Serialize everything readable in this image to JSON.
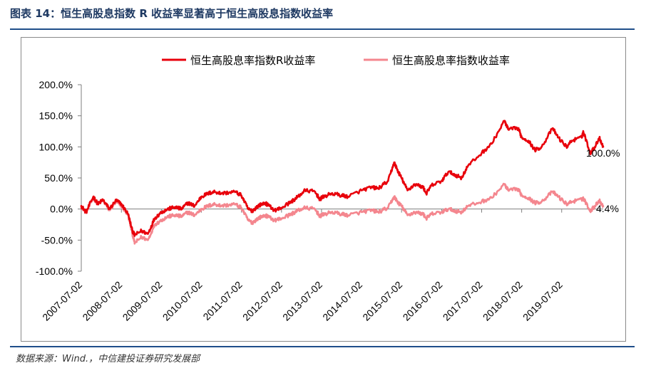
{
  "figure": {
    "title": "图表 14：恒生高股息指数 R 收益率显著高于恒生高股息指数收益率",
    "source": "数据来源：Wind.，中信建投证券研究发展部"
  },
  "chart_data": {
    "type": "line",
    "ylim": [
      -100,
      200
    ],
    "yticks": [
      "200.0%",
      "150.0%",
      "100.0%",
      "50.0%",
      "0.0%",
      "-50.0%",
      "-100.0%"
    ],
    "ytick_values": [
      200,
      150,
      100,
      50,
      0,
      -50,
      -100
    ],
    "xlim": [
      "2007-07-02",
      "2020-07-15"
    ],
    "xticks": [
      "2007-07-02",
      "2008-07-02",
      "2009-07-02",
      "2010-07-02",
      "2011-07-02",
      "2012-07-02",
      "2013-07-02",
      "2014-07-02",
      "2015-07-02",
      "2016-07-02",
      "2017-07-02",
      "2018-07-02",
      "2019-07-02"
    ],
    "legend_position": "top",
    "grid": false,
    "series": [
      {
        "name": "恒生高股息率指数R收益率",
        "color": "#e8000b",
        "end_label": "100.0%",
        "points": [
          [
            "2007-07-02",
            5
          ],
          [
            "2007-08-15",
            -5
          ],
          [
            "2007-10-20",
            20
          ],
          [
            "2007-12-01",
            8
          ],
          [
            "2008-01-15",
            15
          ],
          [
            "2008-03-15",
            0
          ],
          [
            "2008-05-15",
            14
          ],
          [
            "2008-07-02",
            8
          ],
          [
            "2008-09-01",
            -8
          ],
          [
            "2008-10-10",
            -35
          ],
          [
            "2008-11-01",
            -42
          ],
          [
            "2009-01-01",
            -35
          ],
          [
            "2009-03-01",
            -40
          ],
          [
            "2009-05-01",
            -15
          ],
          [
            "2009-07-02",
            -5
          ],
          [
            "2009-09-01",
            0
          ],
          [
            "2009-11-01",
            3
          ],
          [
            "2010-01-01",
            0
          ],
          [
            "2010-03-01",
            10
          ],
          [
            "2010-05-01",
            5
          ],
          [
            "2010-07-02",
            20
          ],
          [
            "2010-09-01",
            25
          ],
          [
            "2010-11-01",
            28
          ],
          [
            "2011-01-01",
            25
          ],
          [
            "2011-05-01",
            28
          ],
          [
            "2011-07-02",
            22
          ],
          [
            "2011-09-01",
            0
          ],
          [
            "2011-10-10",
            -3
          ],
          [
            "2011-12-01",
            5
          ],
          [
            "2012-02-01",
            10
          ],
          [
            "2012-05-01",
            -2
          ],
          [
            "2012-07-02",
            2
          ],
          [
            "2012-10-01",
            12
          ],
          [
            "2012-12-01",
            20
          ],
          [
            "2013-02-01",
            30
          ],
          [
            "2013-05-01",
            28
          ],
          [
            "2013-06-20",
            15
          ],
          [
            "2013-07-02",
            18
          ],
          [
            "2013-10-01",
            25
          ],
          [
            "2014-01-01",
            22
          ],
          [
            "2014-03-01",
            20
          ],
          [
            "2014-07-02",
            30
          ],
          [
            "2014-10-01",
            35
          ],
          [
            "2014-12-01",
            33
          ],
          [
            "2015-03-01",
            45
          ],
          [
            "2015-04-25",
            75
          ],
          [
            "2015-06-01",
            60
          ],
          [
            "2015-07-02",
            50
          ],
          [
            "2015-08-25",
            30
          ],
          [
            "2015-11-01",
            40
          ],
          [
            "2016-01-15",
            35
          ],
          [
            "2016-02-12",
            25
          ],
          [
            "2016-04-01",
            38
          ],
          [
            "2016-07-02",
            45
          ],
          [
            "2016-09-01",
            60
          ],
          [
            "2016-11-01",
            55
          ],
          [
            "2016-12-30",
            50
          ],
          [
            "2017-03-01",
            70
          ],
          [
            "2017-07-02",
            90
          ],
          [
            "2017-10-01",
            105
          ],
          [
            "2018-01-26",
            142
          ],
          [
            "2018-03-01",
            128
          ],
          [
            "2018-06-01",
            130
          ],
          [
            "2018-07-02",
            115
          ],
          [
            "2018-09-01",
            110
          ],
          [
            "2018-10-30",
            95
          ],
          [
            "2019-01-01",
            100
          ],
          [
            "2019-04-10",
            130
          ],
          [
            "2019-06-01",
            115
          ],
          [
            "2019-08-15",
            100
          ],
          [
            "2019-10-01",
            110
          ],
          [
            "2019-12-31",
            115
          ],
          [
            "2020-01-15",
            125
          ],
          [
            "2020-03-19",
            90
          ],
          [
            "2020-05-01",
            100
          ],
          [
            "2020-06-10",
            115
          ],
          [
            "2020-07-15",
            100
          ]
        ]
      },
      {
        "name": "恒生高股息率指数收益率",
        "color": "#f4868e",
        "end_label": "4.4%",
        "points": [
          [
            "2007-07-02",
            5
          ],
          [
            "2007-08-15",
            -6
          ],
          [
            "2007-10-20",
            18
          ],
          [
            "2007-12-01",
            8
          ],
          [
            "2008-01-15",
            14
          ],
          [
            "2008-03-15",
            -2
          ],
          [
            "2008-05-15",
            12
          ],
          [
            "2008-07-02",
            5
          ],
          [
            "2008-09-01",
            -10
          ],
          [
            "2008-10-10",
            -40
          ],
          [
            "2008-11-01",
            -55
          ],
          [
            "2009-01-01",
            -45
          ],
          [
            "2009-03-01",
            -50
          ],
          [
            "2009-05-01",
            -25
          ],
          [
            "2009-07-02",
            -18
          ],
          [
            "2009-09-01",
            -12
          ],
          [
            "2009-11-01",
            -10
          ],
          [
            "2010-01-01",
            -12
          ],
          [
            "2010-03-01",
            -5
          ],
          [
            "2010-05-01",
            -10
          ],
          [
            "2010-07-02",
            0
          ],
          [
            "2010-09-01",
            5
          ],
          [
            "2010-11-01",
            8
          ],
          [
            "2011-01-01",
            5
          ],
          [
            "2011-05-01",
            8
          ],
          [
            "2011-07-02",
            2
          ],
          [
            "2011-09-01",
            -18
          ],
          [
            "2011-10-10",
            -22
          ],
          [
            "2011-12-01",
            -15
          ],
          [
            "2012-02-01",
            -10
          ],
          [
            "2012-05-01",
            -18
          ],
          [
            "2012-07-02",
            -15
          ],
          [
            "2012-10-01",
            -8
          ],
          [
            "2012-12-01",
            -2
          ],
          [
            "2013-02-01",
            2
          ],
          [
            "2013-05-01",
            0
          ],
          [
            "2013-06-20",
            -12
          ],
          [
            "2013-07-02",
            -10
          ],
          [
            "2013-10-01",
            -5
          ],
          [
            "2014-01-01",
            -8
          ],
          [
            "2014-03-01",
            -10
          ],
          [
            "2014-07-02",
            -5
          ],
          [
            "2014-10-01",
            -2
          ],
          [
            "2014-12-01",
            -5
          ],
          [
            "2015-03-01",
            2
          ],
          [
            "2015-04-25",
            20
          ],
          [
            "2015-06-01",
            10
          ],
          [
            "2015-07-02",
            5
          ],
          [
            "2015-08-25",
            -10
          ],
          [
            "2015-11-01",
            -5
          ],
          [
            "2016-01-15",
            -8
          ],
          [
            "2016-02-12",
            -15
          ],
          [
            "2016-04-01",
            -8
          ],
          [
            "2016-07-02",
            -5
          ],
          [
            "2016-09-01",
            0
          ],
          [
            "2016-11-01",
            -3
          ],
          [
            "2016-12-30",
            -5
          ],
          [
            "2017-03-01",
            5
          ],
          [
            "2017-07-02",
            12
          ],
          [
            "2017-10-01",
            18
          ],
          [
            "2018-01-26",
            40
          ],
          [
            "2018-03-01",
            30
          ],
          [
            "2018-06-01",
            32
          ],
          [
            "2018-07-02",
            22
          ],
          [
            "2018-09-01",
            18
          ],
          [
            "2018-10-30",
            10
          ],
          [
            "2019-01-01",
            12
          ],
          [
            "2019-04-10",
            28
          ],
          [
            "2019-06-01",
            20
          ],
          [
            "2019-08-15",
            8
          ],
          [
            "2019-10-01",
            12
          ],
          [
            "2019-12-31",
            15
          ],
          [
            "2020-01-15",
            18
          ],
          [
            "2020-03-19",
            -3
          ],
          [
            "2020-05-01",
            5
          ],
          [
            "2020-06-10",
            14
          ],
          [
            "2020-07-15",
            4.4
          ]
        ]
      }
    ]
  }
}
